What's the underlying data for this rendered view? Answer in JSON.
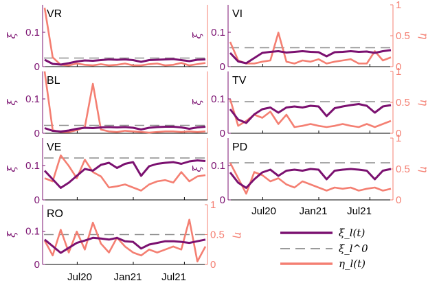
{
  "colors": {
    "xi": "#7b1170",
    "xi0": "#8c8c8c",
    "eta": "#f47f72",
    "axisLeft": "#7b1170",
    "axisRight": "#f47f72"
  },
  "axis_labels": {
    "left": "ξ",
    "right": "η"
  },
  "legend": {
    "xi": "ξ_l(t)",
    "xi0": "ξ_l^0",
    "eta": "η_l(t)"
  },
  "chart_data": {
    "type": "line",
    "x_ticks": [
      "Jul20",
      "Jan21",
      "Jul21"
    ],
    "x_range": [
      "2020-03",
      "2021-11"
    ],
    "left_ylim": [
      0,
      0.18
    ],
    "left_ticks": [
      "0",
      "0.1"
    ],
    "right_ylim": [
      0,
      1
    ],
    "right_ticks": [
      "0",
      "0.5",
      "1"
    ],
    "panels": [
      {
        "label": "VR",
        "xi0": 0.025,
        "xi": [
          0.02,
          0.008,
          0.006,
          0.01,
          0.015,
          0.018,
          0.017,
          0.019,
          0.021,
          0.02,
          0.021,
          0.019,
          0.014,
          0.019,
          0.02,
          0.021,
          0.022,
          0.019,
          0.016,
          0.02,
          0.021
        ],
        "eta": [
          0.95,
          0.15,
          0.03,
          0.02,
          0.05,
          0.03,
          0.02,
          0.04,
          0.02,
          0.03,
          0.05,
          0.02,
          0.02,
          0.04,
          0.05,
          0.02,
          0.03,
          0.06,
          0.02,
          0.04,
          0.06
        ]
      },
      {
        "label": "BL",
        "xi0": 0.023,
        "xi": [
          0.015,
          0.007,
          0.005,
          0.008,
          0.013,
          0.016,
          0.015,
          0.017,
          0.018,
          0.017,
          0.018,
          0.016,
          0.011,
          0.016,
          0.018,
          0.019,
          0.019,
          0.017,
          0.013,
          0.017,
          0.019
        ],
        "eta": [
          1.0,
          0.05,
          0.02,
          0.02,
          0.05,
          0.1,
          0.8,
          0.06,
          0.03,
          0.02,
          0.04,
          0.03,
          0.02,
          0.01,
          0.02,
          0.03,
          0.03,
          0.02,
          0.03,
          0.02,
          0.03
        ]
      },
      {
        "label": "VE",
        "xi0": 0.122,
        "xi": [
          0.085,
          0.06,
          0.035,
          0.05,
          0.07,
          0.09,
          0.085,
          0.102,
          0.108,
          0.093,
          0.105,
          0.11,
          0.07,
          0.098,
          0.105,
          0.108,
          0.11,
          0.105,
          0.112,
          0.115,
          0.113
        ],
        "eta": [
          0.35,
          0.3,
          0.72,
          0.55,
          0.35,
          0.65,
          0.45,
          0.38,
          0.2,
          0.22,
          0.25,
          0.2,
          0.15,
          0.25,
          0.3,
          0.32,
          0.28,
          0.45,
          0.3,
          0.38,
          0.4
        ]
      },
      {
        "label": "RO",
        "xi0": 0.09,
        "xi": [
          0.075,
          0.055,
          0.035,
          0.05,
          0.065,
          0.072,
          0.08,
          0.078,
          0.075,
          0.08,
          0.07,
          0.068,
          0.048,
          0.06,
          0.065,
          0.07,
          0.07,
          0.068,
          0.065,
          0.07,
          0.075
        ],
        "eta": [
          0.4,
          0.15,
          0.58,
          0.2,
          0.55,
          0.25,
          0.7,
          0.35,
          0.2,
          0.45,
          0.3,
          0.2,
          0.15,
          0.25,
          0.2,
          0.25,
          0.3,
          0.25,
          0.75,
          0.05,
          0.3
        ]
      },
      {
        "label": "VI",
        "xi0": 0.055,
        "xi": [
          0.04,
          0.015,
          0.01,
          0.025,
          0.04,
          0.043,
          0.045,
          0.041,
          0.043,
          0.045,
          0.043,
          0.042,
          0.03,
          0.042,
          0.043,
          0.045,
          0.043,
          0.044,
          0.04,
          0.045,
          0.048
        ],
        "eta": [
          0.4,
          0.1,
          0.05,
          0.05,
          0.08,
          0.1,
          0.55,
          0.08,
          0.05,
          0.1,
          0.08,
          0.12,
          0.05,
          0.08,
          0.1,
          0.12,
          0.05,
          0.05,
          0.25,
          0.1,
          0.15
        ]
      },
      {
        "label": "TV",
        "xi0": 0.092,
        "xi": [
          0.07,
          0.04,
          0.03,
          0.055,
          0.07,
          0.075,
          0.06,
          0.075,
          0.078,
          0.075,
          0.08,
          0.078,
          0.05,
          0.073,
          0.078,
          0.082,
          0.085,
          0.08,
          0.06,
          0.078,
          0.082
        ],
        "eta": [
          0.55,
          0.12,
          0.2,
          0.3,
          0.25,
          0.35,
          0.15,
          0.3,
          0.1,
          0.12,
          0.15,
          0.12,
          0.1,
          0.12,
          0.15,
          0.12,
          0.1,
          0.15,
          0.1,
          0.15,
          0.2
        ]
      },
      {
        "label": "PD",
        "xi0": 0.108,
        "xi": [
          0.08,
          0.05,
          0.035,
          0.06,
          0.08,
          0.088,
          0.07,
          0.085,
          0.088,
          0.085,
          0.09,
          0.088,
          0.06,
          0.085,
          0.088,
          0.09,
          0.088,
          0.085,
          0.06,
          0.085,
          0.09
        ],
        "eta": [
          0.6,
          0.35,
          0.1,
          0.45,
          0.4,
          0.3,
          0.35,
          0.25,
          0.2,
          0.3,
          0.25,
          0.2,
          0.15,
          0.2,
          0.18,
          0.2,
          0.15,
          0.18,
          0.2,
          0.15,
          0.18
        ]
      }
    ]
  }
}
